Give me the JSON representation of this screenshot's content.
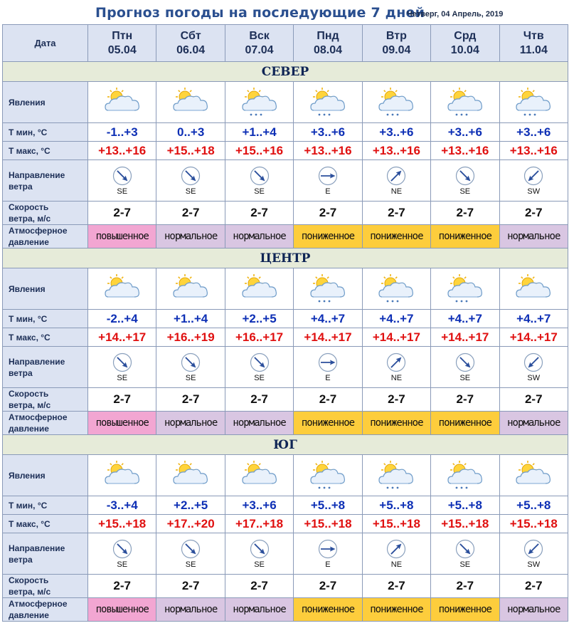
{
  "header": {
    "title": "Прогноз погоды на последующие 7 дней",
    "current_date": "Четверг, 04 Апрель, 2019"
  },
  "table": {
    "date_label": "Дата",
    "days": [
      {
        "name": "Птн",
        "date": "05.04"
      },
      {
        "name": "Сбт",
        "date": "06.04"
      },
      {
        "name": "Вск",
        "date": "07.04"
      },
      {
        "name": "Пнд",
        "date": "08.04"
      },
      {
        "name": "Втр",
        "date": "09.04"
      },
      {
        "name": "Срд",
        "date": "10.04"
      },
      {
        "name": "Чтв",
        "date": "11.04"
      }
    ],
    "row_labels": {
      "phenomena": "Явления",
      "tmin": "Т мин, °С",
      "tmax": "Т макс, °С",
      "wind_dir_1": "Направление",
      "wind_dir_2": "ветра",
      "speed_1": "Скорость",
      "speed_2": "ветра, м/с",
      "pressure_1": "Атмосферное",
      "pressure_2": "давление"
    }
  },
  "regions": [
    {
      "name": "СЕВЕР",
      "phenomena": [
        "partly-cloudy-icon",
        "partly-cloudy-icon",
        "partly-cloudy-snow-icon",
        "partly-cloudy-snow-icon",
        "partly-cloudy-snow-icon",
        "partly-cloudy-snow-icon",
        "partly-cloudy-snow-icon"
      ],
      "tmin": [
        "-1..+3",
        "0..+3",
        "+1..+4",
        "+3..+6",
        "+3..+6",
        "+3..+6",
        "+3..+6"
      ],
      "tmax": [
        "+13..+16",
        "+15..+18",
        "+15..+16",
        "+13..+16",
        "+13..+16",
        "+13..+16",
        "+13..+16"
      ],
      "wind_dir": [
        "SE",
        "SE",
        "SE",
        "E",
        "NE",
        "SE",
        "SW"
      ],
      "speed": [
        "2-7",
        "2-7",
        "2-7",
        "2-7",
        "2-7",
        "2-7",
        "2-7"
      ],
      "pressure": [
        "повышенное",
        "нормальное",
        "нормальное",
        "пониженное",
        "пониженное",
        "пониженное",
        "нормальное"
      ],
      "pressure_level": [
        "high",
        "normal",
        "normal",
        "low",
        "low",
        "low",
        "normal"
      ]
    },
    {
      "name": "ЦЕНТР",
      "phenomena": [
        "partly-cloudy-icon",
        "partly-cloudy-icon",
        "partly-cloudy-icon",
        "partly-cloudy-snow-icon",
        "partly-cloudy-snow-icon",
        "partly-cloudy-snow-icon",
        "partly-cloudy-icon"
      ],
      "tmin": [
        "-2..+4",
        "+1..+4",
        "+2..+5",
        "+4..+7",
        "+4..+7",
        "+4..+7",
        "+4..+7"
      ],
      "tmax": [
        "+14..+17",
        "+16..+19",
        "+16..+17",
        "+14..+17",
        "+14..+17",
        "+14..+17",
        "+14..+17"
      ],
      "wind_dir": [
        "SE",
        "SE",
        "SE",
        "E",
        "NE",
        "SE",
        "SW"
      ],
      "speed": [
        "2-7",
        "2-7",
        "2-7",
        "2-7",
        "2-7",
        "2-7",
        "2-7"
      ],
      "pressure": [
        "повышенное",
        "нормальное",
        "нормальное",
        "пониженное",
        "пониженное",
        "пониженное",
        "нормальное"
      ],
      "pressure_level": [
        "high",
        "normal",
        "normal",
        "low",
        "low",
        "low",
        "normal"
      ]
    },
    {
      "name": "ЮГ",
      "phenomena": [
        "partly-cloudy-icon",
        "partly-cloudy-icon",
        "partly-cloudy-icon",
        "partly-cloudy-snow-icon",
        "partly-cloudy-snow-icon",
        "partly-cloudy-snow-icon",
        "partly-cloudy-icon"
      ],
      "tmin": [
        "-3..+4",
        "+2..+5",
        "+3..+6",
        "+5..+8",
        "+5..+8",
        "+5..+8",
        "+5..+8"
      ],
      "tmax": [
        "+15..+18",
        "+17..+20",
        "+17..+18",
        "+15..+18",
        "+15..+18",
        "+15..+18",
        "+15..+18"
      ],
      "wind_dir": [
        "SE",
        "SE",
        "SE",
        "E",
        "NE",
        "SE",
        "SW"
      ],
      "speed": [
        "2-7",
        "2-7",
        "2-7",
        "2-7",
        "2-7",
        "2-7",
        "2-7"
      ],
      "pressure": [
        "повышенное",
        "нормальное",
        "нормальное",
        "пониженное",
        "пониженное",
        "пониженное",
        "нормальное"
      ],
      "pressure_level": [
        "high",
        "normal",
        "normal",
        "low",
        "low",
        "low",
        "normal"
      ]
    }
  ],
  "colors": {
    "header_bg": "#dce3f2",
    "section_bg": "#e6ebd9",
    "tmin": "#0d2fb5",
    "tmax": "#e01010",
    "pressure_high": "#f2a6d2",
    "pressure_normal": "#d9c6e2",
    "pressure_low": "#fdcd3c"
  }
}
